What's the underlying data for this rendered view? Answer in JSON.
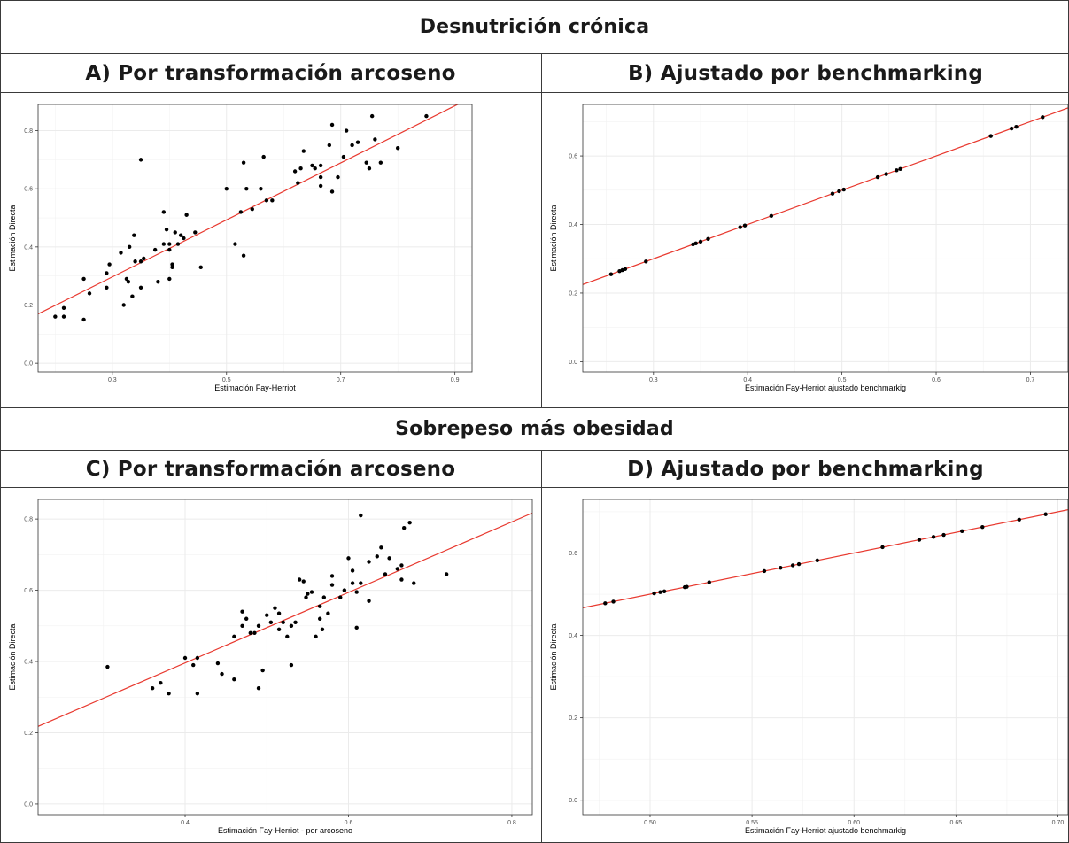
{
  "figure": {
    "group_titles": [
      "Desnutrición crónica",
      "Sobrepeso más obesidad"
    ],
    "colors": {
      "points": "#000000",
      "fit_line": "#e8392f",
      "grid": "#ebebeb",
      "axis_text": "#4d4d4d",
      "frame": "#333333"
    }
  },
  "chart_data": [
    {
      "id": "A",
      "type": "scatter",
      "title": "A) Por transformación arcoseno",
      "xlabel": "Estimación Fay-Herriot",
      "ylabel": "Estimación Directa",
      "xlim": [
        0.17,
        0.93
      ],
      "ylim": [
        -0.03,
        0.89
      ],
      "xticks": [
        0.3,
        0.5,
        0.7,
        0.9
      ],
      "yticks": [
        0.0,
        0.2,
        0.4,
        0.6,
        0.8
      ],
      "xtick_labels": [
        "0.3",
        "0.5",
        "0.7",
        "0.9"
      ],
      "ytick_labels": [
        "0.0",
        "0.2",
        "0.4",
        "0.6",
        "0.8"
      ],
      "grid": true,
      "fit_line": {
        "slope": 0.981,
        "intercept": 0.0025
      },
      "points": [
        [
          0.2,
          0.16
        ],
        [
          0.215,
          0.19
        ],
        [
          0.215,
          0.16
        ],
        [
          0.25,
          0.15
        ],
        [
          0.25,
          0.29
        ],
        [
          0.26,
          0.24
        ],
        [
          0.29,
          0.26
        ],
        [
          0.29,
          0.31
        ],
        [
          0.295,
          0.34
        ],
        [
          0.315,
          0.38
        ],
        [
          0.32,
          0.2
        ],
        [
          0.325,
          0.29
        ],
        [
          0.328,
          0.28
        ],
        [
          0.33,
          0.4
        ],
        [
          0.335,
          0.23
        ],
        [
          0.338,
          0.44
        ],
        [
          0.34,
          0.35
        ],
        [
          0.35,
          0.26
        ],
        [
          0.35,
          0.35
        ],
        [
          0.355,
          0.36
        ],
        [
          0.35,
          0.7
        ],
        [
          0.375,
          0.39
        ],
        [
          0.38,
          0.28
        ],
        [
          0.39,
          0.41
        ],
        [
          0.39,
          0.52
        ],
        [
          0.395,
          0.46
        ],
        [
          0.4,
          0.29
        ],
        [
          0.4,
          0.39
        ],
        [
          0.4,
          0.41
        ],
        [
          0.405,
          0.34
        ],
        [
          0.405,
          0.33
        ],
        [
          0.41,
          0.45
        ],
        [
          0.415,
          0.41
        ],
        [
          0.42,
          0.44
        ],
        [
          0.425,
          0.43
        ],
        [
          0.43,
          0.51
        ],
        [
          0.445,
          0.45
        ],
        [
          0.455,
          0.33
        ],
        [
          0.5,
          0.6
        ],
        [
          0.515,
          0.41
        ],
        [
          0.525,
          0.52
        ],
        [
          0.53,
          0.37
        ],
        [
          0.53,
          0.69
        ],
        [
          0.535,
          0.6
        ],
        [
          0.545,
          0.53
        ],
        [
          0.56,
          0.6
        ],
        [
          0.565,
          0.71
        ],
        [
          0.57,
          0.56
        ],
        [
          0.58,
          0.56
        ],
        [
          0.62,
          0.66
        ],
        [
          0.625,
          0.62
        ],
        [
          0.63,
          0.67
        ],
        [
          0.635,
          0.73
        ],
        [
          0.65,
          0.68
        ],
        [
          0.655,
          0.67
        ],
        [
          0.665,
          0.61
        ],
        [
          0.665,
          0.64
        ],
        [
          0.665,
          0.68
        ],
        [
          0.68,
          0.75
        ],
        [
          0.685,
          0.82
        ],
        [
          0.685,
          0.59
        ],
        [
          0.695,
          0.64
        ],
        [
          0.705,
          0.71
        ],
        [
          0.71,
          0.8
        ],
        [
          0.72,
          0.75
        ],
        [
          0.73,
          0.76
        ],
        [
          0.745,
          0.69
        ],
        [
          0.75,
          0.67
        ],
        [
          0.755,
          0.85
        ],
        [
          0.76,
          0.77
        ],
        [
          0.77,
          0.69
        ],
        [
          0.8,
          0.74
        ],
        [
          0.85,
          0.85
        ]
      ]
    },
    {
      "id": "B",
      "type": "scatter",
      "title": "B) Ajustado por benchmarking",
      "xlabel": "Estimación Fay-Herriot ajustado benchmarkig",
      "ylabel": "Estimación Directa",
      "xlim": [
        0.225,
        0.74
      ],
      "ylim": [
        -0.03,
        0.75
      ],
      "xticks": [
        0.3,
        0.4,
        0.5,
        0.6,
        0.7
      ],
      "yticks": [
        0.0,
        0.2,
        0.4,
        0.6
      ],
      "xtick_labels": [
        "0.3",
        "0.4",
        "0.5",
        "0.6",
        "0.7"
      ],
      "ytick_labels": [
        "0.0",
        "0.2",
        "0.4",
        "0.6"
      ],
      "grid": true,
      "fit_line": {
        "slope": 1.0,
        "intercept": 0.0
      },
      "points": [
        [
          0.255,
          0.255
        ],
        [
          0.264,
          0.264
        ],
        [
          0.267,
          0.267
        ],
        [
          0.27,
          0.27
        ],
        [
          0.292,
          0.292
        ],
        [
          0.342,
          0.342
        ],
        [
          0.345,
          0.345
        ],
        [
          0.35,
          0.35
        ],
        [
          0.358,
          0.358
        ],
        [
          0.392,
          0.392
        ],
        [
          0.397,
          0.397
        ],
        [
          0.425,
          0.425
        ],
        [
          0.49,
          0.49
        ],
        [
          0.497,
          0.497
        ],
        [
          0.502,
          0.502
        ],
        [
          0.538,
          0.538
        ],
        [
          0.547,
          0.547
        ],
        [
          0.558,
          0.558
        ],
        [
          0.562,
          0.562
        ],
        [
          0.658,
          0.658
        ],
        [
          0.68,
          0.68
        ],
        [
          0.685,
          0.685
        ],
        [
          0.713,
          0.713
        ]
      ]
    },
    {
      "id": "C",
      "type": "scatter",
      "title": "C) Por transformación arcoseno",
      "xlabel": "Estimación Fay-Herriot - por arcoseno",
      "ylabel": "Estimación Directa",
      "xlim": [
        0.22,
        0.825
      ],
      "ylim": [
        -0.03,
        0.855
      ],
      "xticks": [
        0.4,
        0.6,
        0.8
      ],
      "yticks": [
        0.0,
        0.2,
        0.4,
        0.6,
        0.8
      ],
      "xtick_labels": [
        "0.4",
        "0.6",
        "0.8"
      ],
      "ytick_labels": [
        "0.0",
        "0.2",
        "0.4",
        "0.6",
        "0.8"
      ],
      "grid": true,
      "fit_line": {
        "slope": 0.99,
        "intercept": 0.0
      },
      "points": [
        [
          0.305,
          0.385
        ],
        [
          0.36,
          0.325
        ],
        [
          0.37,
          0.34
        ],
        [
          0.38,
          0.31
        ],
        [
          0.4,
          0.41
        ],
        [
          0.41,
          0.39
        ],
        [
          0.415,
          0.41
        ],
        [
          0.415,
          0.31
        ],
        [
          0.44,
          0.395
        ],
        [
          0.445,
          0.365
        ],
        [
          0.46,
          0.35
        ],
        [
          0.46,
          0.47
        ],
        [
          0.47,
          0.5
        ],
        [
          0.47,
          0.54
        ],
        [
          0.475,
          0.52
        ],
        [
          0.48,
          0.48
        ],
        [
          0.485,
          0.48
        ],
        [
          0.49,
          0.5
        ],
        [
          0.49,
          0.325
        ],
        [
          0.495,
          0.375
        ],
        [
          0.5,
          0.53
        ],
        [
          0.505,
          0.51
        ],
        [
          0.51,
          0.55
        ],
        [
          0.515,
          0.49
        ],
        [
          0.515,
          0.535
        ],
        [
          0.52,
          0.51
        ],
        [
          0.525,
          0.47
        ],
        [
          0.53,
          0.5
        ],
        [
          0.53,
          0.39
        ],
        [
          0.535,
          0.51
        ],
        [
          0.54,
          0.63
        ],
        [
          0.545,
          0.625
        ],
        [
          0.548,
          0.58
        ],
        [
          0.55,
          0.59
        ],
        [
          0.555,
          0.595
        ],
        [
          0.56,
          0.47
        ],
        [
          0.565,
          0.52
        ],
        [
          0.565,
          0.555
        ],
        [
          0.568,
          0.49
        ],
        [
          0.57,
          0.58
        ],
        [
          0.575,
          0.535
        ],
        [
          0.58,
          0.615
        ],
        [
          0.58,
          0.64
        ],
        [
          0.59,
          0.58
        ],
        [
          0.595,
          0.6
        ],
        [
          0.6,
          0.69
        ],
        [
          0.605,
          0.655
        ],
        [
          0.605,
          0.62
        ],
        [
          0.61,
          0.595
        ],
        [
          0.61,
          0.495
        ],
        [
          0.615,
          0.62
        ],
        [
          0.615,
          0.81
        ],
        [
          0.625,
          0.68
        ],
        [
          0.625,
          0.57
        ],
        [
          0.635,
          0.695
        ],
        [
          0.64,
          0.72
        ],
        [
          0.645,
          0.645
        ],
        [
          0.65,
          0.69
        ],
        [
          0.66,
          0.66
        ],
        [
          0.665,
          0.63
        ],
        [
          0.665,
          0.67
        ],
        [
          0.668,
          0.775
        ],
        [
          0.675,
          0.79
        ],
        [
          0.68,
          0.62
        ],
        [
          0.72,
          0.645
        ]
      ]
    },
    {
      "id": "D",
      "type": "scatter",
      "title": "D) Ajustado por benchmarking",
      "xlabel": "Estimación Fay-Herriot ajustado benchmarkig",
      "ylabel": "Estimación Directa",
      "xlim": [
        0.467,
        0.705
      ],
      "ylim": [
        -0.035,
        0.73
      ],
      "xticks": [
        0.5,
        0.55,
        0.6,
        0.65,
        0.7
      ],
      "yticks": [
        0.0,
        0.2,
        0.4,
        0.6
      ],
      "xtick_labels": [
        "0.50",
        "0.55",
        "0.60",
        "0.65",
        "0.70"
      ],
      "ytick_labels": [
        "0.0",
        "0.2",
        "0.4",
        "0.6"
      ],
      "grid": true,
      "fit_line": {
        "slope": 1.0,
        "intercept": 0.0
      },
      "points": [
        [
          0.478,
          0.478
        ],
        [
          0.482,
          0.482
        ],
        [
          0.502,
          0.502
        ],
        [
          0.505,
          0.505
        ],
        [
          0.507,
          0.507
        ],
        [
          0.517,
          0.517
        ],
        [
          0.518,
          0.518
        ],
        [
          0.529,
          0.529
        ],
        [
          0.556,
          0.556
        ],
        [
          0.564,
          0.564
        ],
        [
          0.57,
          0.57
        ],
        [
          0.573,
          0.573
        ],
        [
          0.582,
          0.582
        ],
        [
          0.614,
          0.614
        ],
        [
          0.632,
          0.632
        ],
        [
          0.639,
          0.639
        ],
        [
          0.644,
          0.644
        ],
        [
          0.653,
          0.653
        ],
        [
          0.663,
          0.663
        ],
        [
          0.681,
          0.681
        ],
        [
          0.694,
          0.694
        ]
      ]
    }
  ]
}
